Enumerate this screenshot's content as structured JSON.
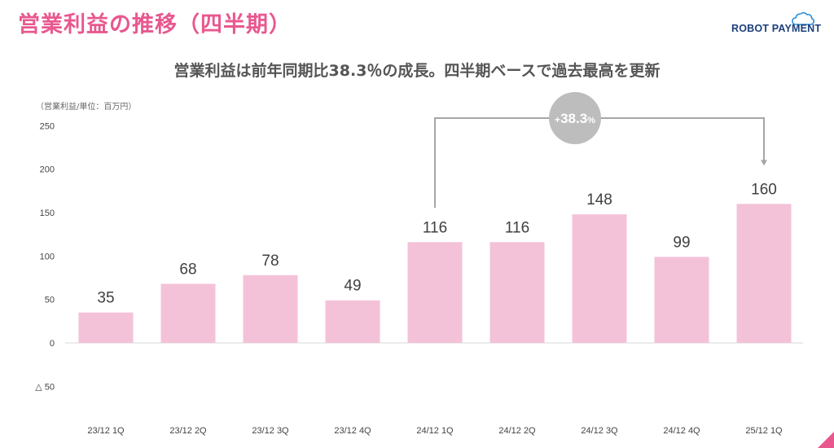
{
  "header": {
    "title": "営業利益の推移（四半期）",
    "brand": "ROBOT PAYMENT"
  },
  "subtitle": "営業利益は前年同期比38.3％の成長。四半期ベースで過去最高を更新",
  "colors": {
    "title": "#e8588f",
    "bar": "#f4c2d8",
    "bubble": "#bdbdbd",
    "bracket": "#a6a6a6",
    "brand": "#1d3f7a"
  },
  "icons": {
    "logo": "cloud-icon",
    "corner": "corner-triangle-icon"
  },
  "chart_data": {
    "type": "bar",
    "unit_label": "（営業利益/単位：百万円）",
    "categories": [
      "23/12 1Q",
      "23/12 2Q",
      "23/12 3Q",
      "23/12 4Q",
      "24/12 1Q",
      "24/12 2Q",
      "24/12 3Q",
      "24/12 4Q",
      "25/12 1Q"
    ],
    "values": [
      35,
      68,
      78,
      49,
      116,
      116,
      148,
      99,
      160
    ],
    "ylim": [
      -50,
      250
    ],
    "yticks": [
      250,
      200,
      150,
      100,
      50,
      0,
      -50
    ],
    "ytick_labels": [
      "250",
      "200",
      "150",
      "100",
      "50",
      "0",
      "△ 50"
    ],
    "grid": false,
    "annotation": {
      "from_category": "24/12 1Q",
      "to_category": "25/12 1Q",
      "plus": "+",
      "value": "38.3",
      "suffix": "%"
    }
  }
}
